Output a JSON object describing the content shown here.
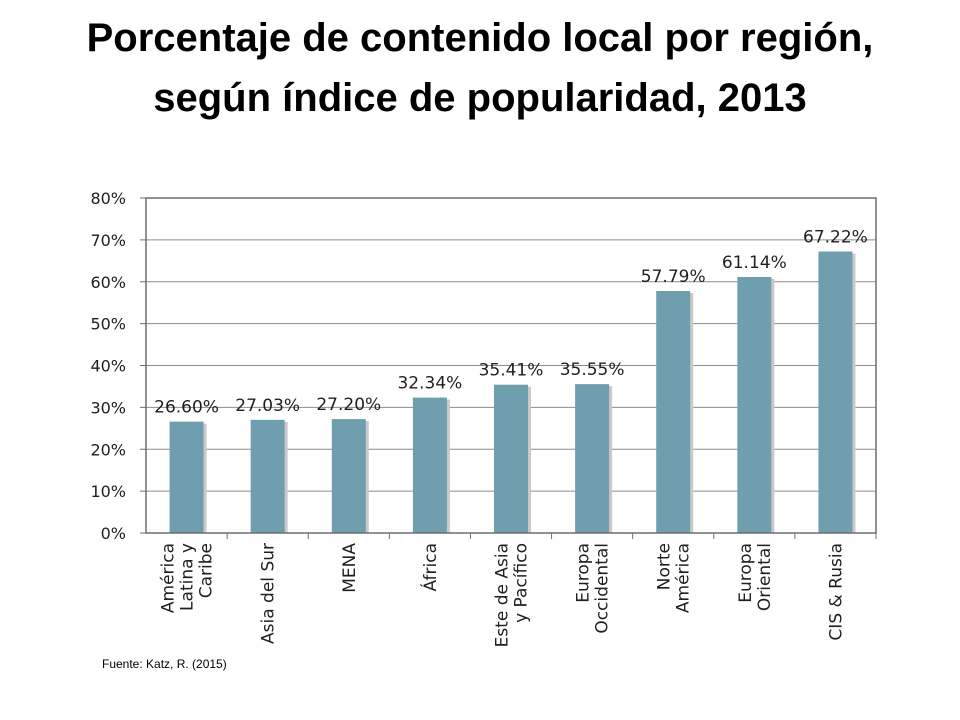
{
  "title": "Porcentaje de contenido local por región, según índice de popularidad, 2013",
  "source": "Fuente: Katz, R. (2015)",
  "colors": {
    "bar": "#6f9faf",
    "bar_shadow": "#c9c9c9",
    "grid": "#8c8c8c",
    "frame": "#6e6e6e",
    "text": "#1f1f1f"
  },
  "chart_data": {
    "type": "bar",
    "title": "",
    "xlabel": "",
    "ylabel": "",
    "ylim": [
      0,
      0.8
    ],
    "yticks": [
      "0%",
      "10%",
      "20%",
      "30%",
      "40%",
      "50%",
      "60%",
      "70%",
      "80%"
    ],
    "grid": true,
    "legend": "none",
    "categories": [
      [
        "América",
        "Latina y",
        "Caribe"
      ],
      [
        "Asia del Sur"
      ],
      [
        "MENA"
      ],
      [
        "África"
      ],
      [
        "Este de Asia",
        "y Pacífico"
      ],
      [
        "Europa",
        "Occidental"
      ],
      [
        "Norte",
        "América"
      ],
      [
        "Europa",
        "Oriental"
      ],
      [
        "CIS & Rusia"
      ]
    ],
    "values": [
      0.266,
      0.2703,
      0.272,
      0.3234,
      0.3541,
      0.3555,
      0.5779,
      0.6114,
      0.6722
    ],
    "data_labels": [
      "26.60%",
      "27.03%",
      "27.20%",
      "32.34%",
      "35.41%",
      "35.55%",
      "57.79%",
      "61.14%",
      "67.22%"
    ]
  }
}
